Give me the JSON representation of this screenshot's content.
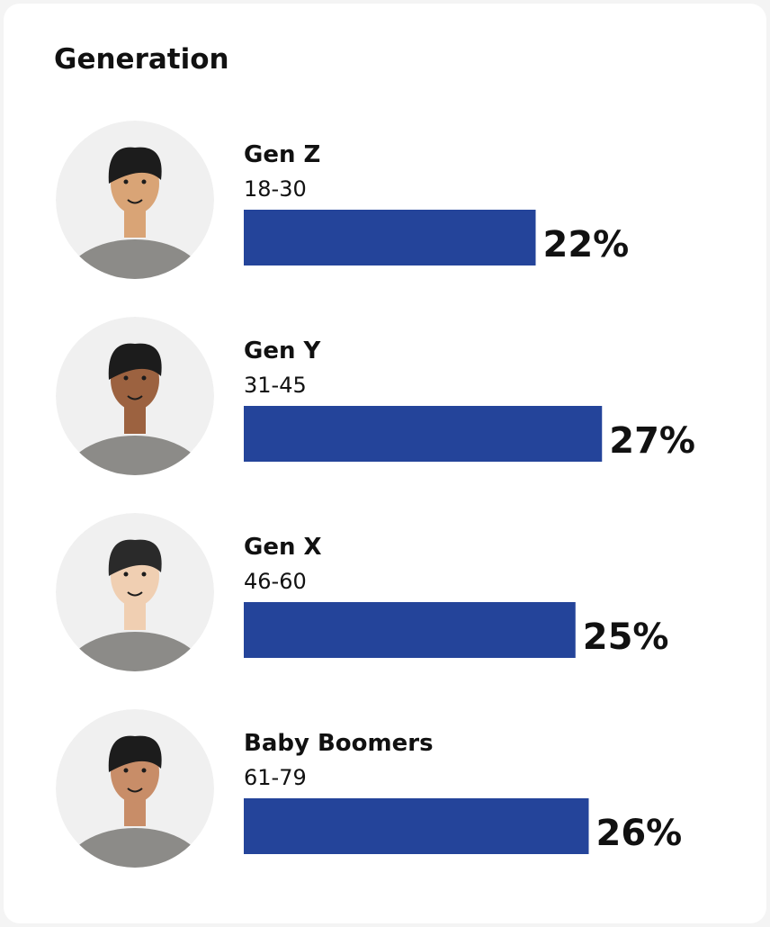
{
  "chart_data": {
    "type": "bar",
    "orientation": "horizontal",
    "title": "Generation",
    "categories": [
      "Gen Z",
      "Gen Y",
      "Gen X",
      "Baby Boomers"
    ],
    "subcategories": [
      "18-30",
      "31-45",
      "46-60",
      "61-79"
    ],
    "values": [
      22,
      27,
      25,
      26
    ],
    "value_labels": [
      "22%",
      "27%",
      "25%",
      "26%"
    ],
    "color": "#24449a"
  }
}
